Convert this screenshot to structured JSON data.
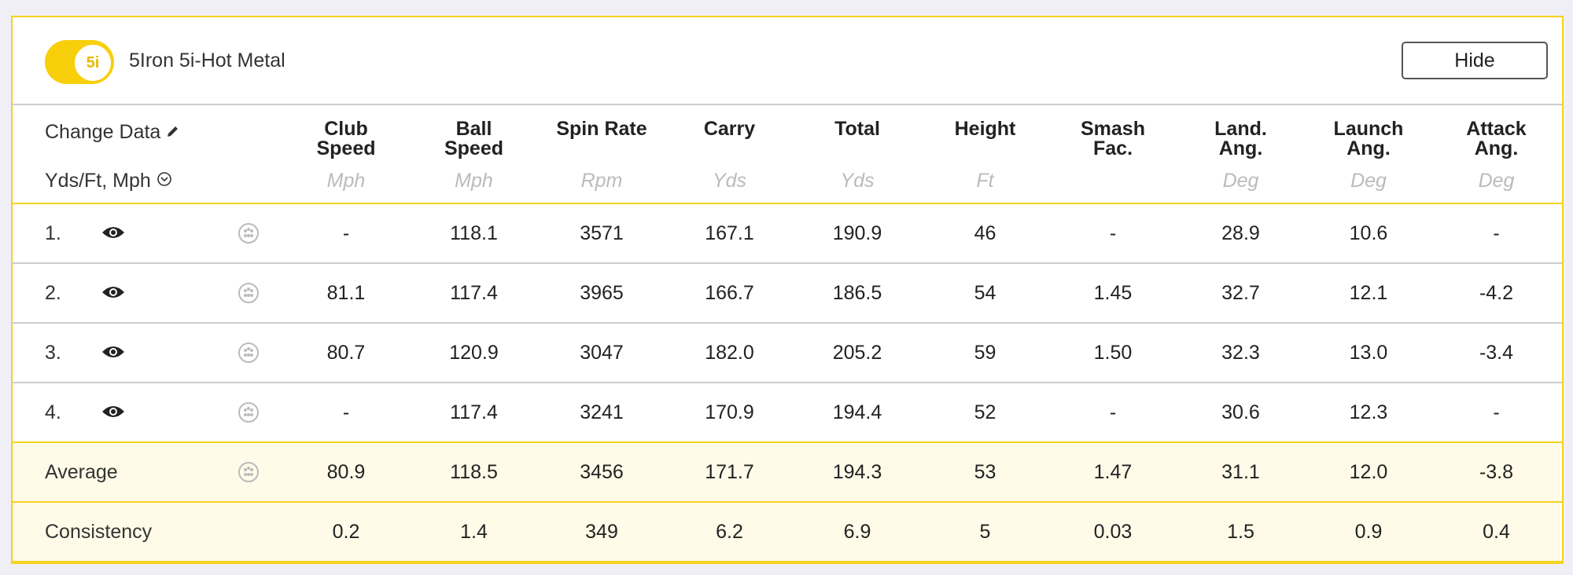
{
  "header": {
    "badge": "5i",
    "club": "5Iron 5i-Hot Metal",
    "hide_button": "Hide"
  },
  "table": {
    "change_data": "Change Data",
    "units": "Yds/Ft, Mph",
    "columns": [
      {
        "title": [
          "Club",
          "Speed"
        ],
        "unit": "Mph"
      },
      {
        "title": [
          "Ball",
          "Speed"
        ],
        "unit": "Mph"
      },
      {
        "title": [
          "Spin Rate"
        ],
        "unit": "Rpm"
      },
      {
        "title": [
          "Carry"
        ],
        "unit": "Yds"
      },
      {
        "title": [
          "Total"
        ],
        "unit": "Yds"
      },
      {
        "title": [
          "Height"
        ],
        "unit": "Ft"
      },
      {
        "title": [
          "Smash",
          "Fac."
        ]
      },
      {
        "title": [
          "Land.",
          "Ang."
        ],
        "unit": "Deg"
      },
      {
        "title": [
          "Launch",
          "Ang."
        ],
        "unit": "Deg"
      },
      {
        "title": [
          "Attack",
          "Ang."
        ],
        "unit": "Deg"
      }
    ],
    "rows": [
      {
        "label": "1.",
        "values": [
          "-",
          "118.1",
          "3571",
          "167.1",
          "190.9",
          "46",
          "-",
          "28.9",
          "10.6",
          "-"
        ]
      },
      {
        "label": "2.",
        "values": [
          "81.1",
          "117.4",
          "3965",
          "166.7",
          "186.5",
          "54",
          "1.45",
          "32.7",
          "12.1",
          "-4.2"
        ]
      },
      {
        "label": "3.",
        "values": [
          "80.7",
          "120.9",
          "3047",
          "182.0",
          "205.2",
          "59",
          "1.50",
          "32.3",
          "13.0",
          "-3.4"
        ]
      },
      {
        "label": "4.",
        "values": [
          "-",
          "117.4",
          "3241",
          "170.9",
          "194.4",
          "52",
          "-",
          "30.6",
          "12.3",
          "-"
        ]
      }
    ],
    "average": {
      "label": "Average",
      "values": [
        "80.9",
        "118.5",
        "3456",
        "171.7",
        "194.3",
        "53",
        "1.47",
        "31.1",
        "12.0",
        "-3.8"
      ]
    },
    "consistency": {
      "label": "Consistency",
      "values": [
        "0.2",
        "1.4",
        "349",
        "6.2",
        "6.9",
        "5",
        "0.03",
        "1.5",
        "0.9",
        "0.4"
      ]
    }
  }
}
